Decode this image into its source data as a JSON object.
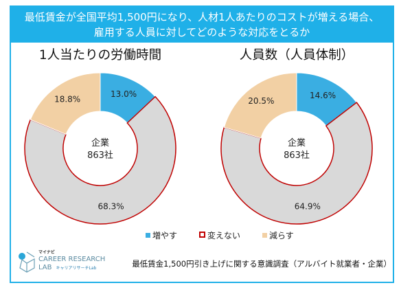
{
  "header": {
    "title_line1": "最低賃金が全国平均1,500円になり、人材1人あたりのコストが増える場合、",
    "title_line2": "雇用する人員に対してどのような対応をとるか"
  },
  "colors": {
    "増やす": "#3aaee2",
    "変えない": "#d9d9d9",
    "変えない_outline": "#c00000",
    "減らす": "#f2d0a4",
    "frame": "#1fb0e8"
  },
  "chart_data": [
    {
      "type": "pie",
      "title": "1人当たりの労働時間",
      "center_label_1": "企業",
      "center_label_2": "863社",
      "categories": [
        "増やす",
        "変えない",
        "減らす"
      ],
      "values": [
        13.0,
        68.3,
        18.8
      ],
      "labels": [
        "13.0%",
        "68.3%",
        "18.8%"
      ]
    },
    {
      "type": "pie",
      "title": "人員数（人員体制）",
      "center_label_1": "企業",
      "center_label_2": "863社",
      "categories": [
        "増やす",
        "変えない",
        "減らす"
      ],
      "values": [
        14.6,
        64.9,
        20.5
      ],
      "labels": [
        "14.6%",
        "64.9%",
        "20.5%"
      ]
    }
  ],
  "legend": {
    "placement": "bottom",
    "items": [
      "増やす",
      "変えない",
      "減らす"
    ]
  },
  "footer": {
    "source": "最低賃金1,500円引き上げに関する意識調査（アルバイト就業者・企業）",
    "logo_top": "マイナビ",
    "logo_main1": "CAREER RESEARCH",
    "logo_main2": "LAB",
    "logo_sub": "キャリアリサーチLab"
  }
}
